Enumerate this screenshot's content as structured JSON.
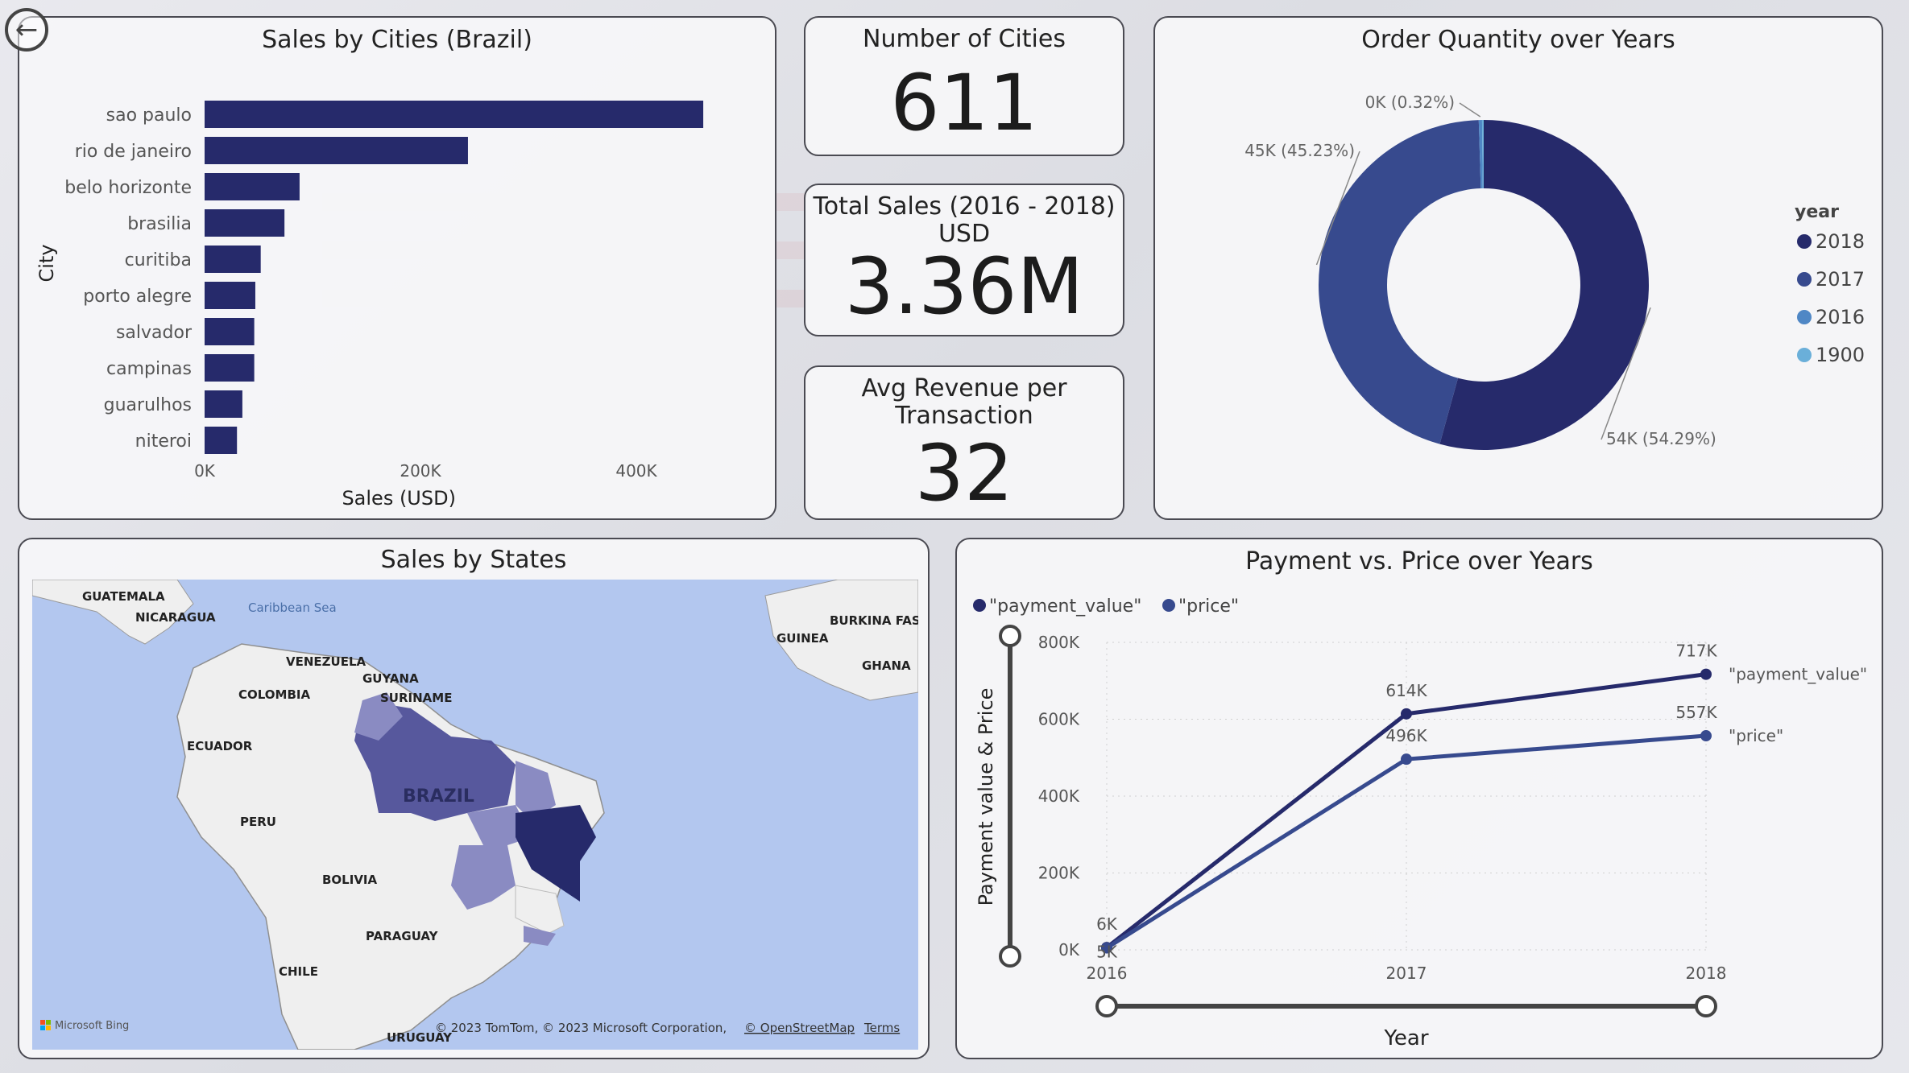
{
  "nav": {
    "back_icon": "back-arrow-icon"
  },
  "cities_chart": {
    "title": "Sales by Cities (Brazil)",
    "chart_data": {
      "type": "bar",
      "orientation": "horizontal",
      "categories": [
        "sao paulo",
        "rio de janeiro",
        "belo horizonte",
        "brasilia",
        "curitiba",
        "porto alegre",
        "salvador",
        "campinas",
        "guarulhos",
        "niteroi"
      ],
      "values": [
        462000,
        244000,
        88000,
        74000,
        52000,
        47000,
        46000,
        46000,
        35000,
        30000
      ],
      "xlabel": "Sales (USD)",
      "ylabel": "City",
      "xlim": [
        0,
        500000
      ],
      "xticks": [
        "0K",
        "200K",
        "400K"
      ],
      "color": "#262a6b"
    }
  },
  "kpi_cities": {
    "title": "Number of Cities",
    "value": "611"
  },
  "kpi_sales": {
    "title_line1": "Total Sales (2016 - 2018)",
    "title_line2": "USD",
    "value": "3.36M"
  },
  "kpi_avg": {
    "title_line1": "Avg Revenue per",
    "title_line2": "Transaction",
    "value": "32"
  },
  "donut_chart": {
    "title": "Order Quantity over Years",
    "chart_data": {
      "type": "pie",
      "donut": true,
      "slices": [
        {
          "name": "2018",
          "value": 54.29,
          "label": "54K (54.29%)",
          "color": "#262a6b"
        },
        {
          "name": "2017",
          "value": 45.23,
          "label": "45K (45.23%)",
          "color": "#374a8e"
        },
        {
          "name": "2016",
          "value": 0.32,
          "label": "0K (0.32%)",
          "color": "#4f87c5"
        },
        {
          "name": "1900",
          "value": 0.16,
          "label": "",
          "color": "#6aafd9"
        }
      ],
      "legend_title": "year",
      "legend_position": "right"
    }
  },
  "map_panel": {
    "title": "Sales by States",
    "labels": {
      "guatemala": "GUATEMALA",
      "nicaragua": "NICARAGUA",
      "caribbean": "Caribbean Sea",
      "venezuela": "VENEZUELA",
      "guyana": "GUYANA",
      "suriname": "SURINAME",
      "colombia": "COLOMBIA",
      "ecuador": "ECUADOR",
      "brazil": "BRAZIL",
      "peru": "PERU",
      "bolivia": "BOLIVIA",
      "paraguay": "PARAGUAY",
      "chile": "CHILE",
      "uruguay": "URUGUAY",
      "burkina": "BURKINA FASO",
      "guinea": "GUINEA",
      "ghana": "GHANA"
    },
    "attribution": "© 2023 TomTom, © 2023 Microsoft Corporation,",
    "osm": "© OpenStreetMap",
    "terms": "Terms",
    "bing": "Microsoft Bing",
    "colors": {
      "water": "#b3c7ef",
      "land": "#efefef",
      "state_dark": "#262a6b",
      "state_mid": "#4e4f98",
      "state_light": "#8a8bc2"
    }
  },
  "line_chart": {
    "title": "Payment vs. Price over Years",
    "chart_data": {
      "type": "line",
      "x": [
        "2016",
        "2017",
        "2018"
      ],
      "series": [
        {
          "name": "\"payment_value\"",
          "values": [
            6000,
            614000,
            717000
          ],
          "labels": [
            "6K",
            "614K",
            "717K"
          ],
          "color": "#262a6b"
        },
        {
          "name": "\"price\"",
          "values": [
            5000,
            496000,
            557000
          ],
          "labels": [
            "5K",
            "496K",
            "557K"
          ],
          "color": "#374a8e"
        }
      ],
      "xlabel": "Year",
      "ylabel": "Payment value & Price",
      "ylim": [
        0,
        800000
      ],
      "yticks": [
        "0K",
        "200K",
        "400K",
        "600K",
        "800K"
      ],
      "grid": true,
      "legend_position": "top-left"
    }
  }
}
